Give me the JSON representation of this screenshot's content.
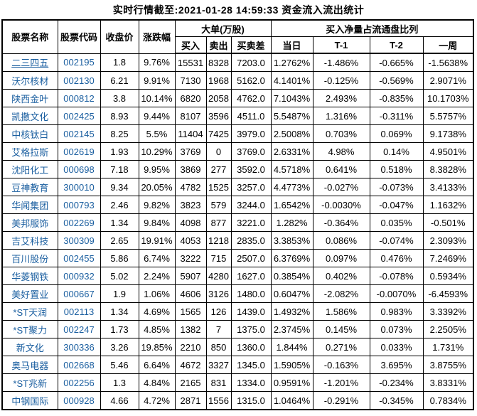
{
  "title": "实时行情截至:2021-01-28 14:59:33 资金流入流出统计",
  "colors": {
    "link_blue": "#1b5fa0",
    "border": "#000000",
    "background": "#ffffff",
    "text": "#000000"
  },
  "table": {
    "group_headers": {
      "big_orders": "大单(万股)",
      "net_buy_ratio": "买入净量占流通盘比列"
    },
    "column_headers": {
      "stock_name": "股票名称",
      "stock_code": "股票代码",
      "close_price": "收盘价",
      "change_pct": "涨跌幅",
      "buy": "买入",
      "sell": "卖出",
      "buy_sell_diff": "买卖差",
      "day": "当日",
      "t1": "T-1",
      "t2": "T-2",
      "week": "一周"
    },
    "underlined_row_index": 0,
    "rows": [
      [
        "二三四五",
        "002195",
        "1.8",
        "9.76%",
        "15531",
        "8328",
        "7203.0",
        "1.2762%",
        "-1.486%",
        "-0.665%",
        "-1.5638%"
      ],
      [
        "沃尔核材",
        "002130",
        "6.21",
        "9.91%",
        "7130",
        "1968",
        "5162.0",
        "4.1401%",
        "-0.125%",
        "-0.569%",
        "2.9071%"
      ],
      [
        "陕西金叶",
        "000812",
        "3.8",
        "10.14%",
        "6820",
        "2058",
        "4762.0",
        "7.1043%",
        "2.493%",
        "-0.835%",
        "10.1703%"
      ],
      [
        "凯撒文化",
        "002425",
        "8.93",
        "9.44%",
        "8107",
        "3596",
        "4511.0",
        "5.5487%",
        "1.316%",
        "-0.311%",
        "5.5757%"
      ],
      [
        "中核钛白",
        "002145",
        "8.25",
        "5.5%",
        "11404",
        "7425",
        "3979.0",
        "2.5008%",
        "0.703%",
        "0.069%",
        "9.1738%"
      ],
      [
        "艾格拉斯",
        "002619",
        "1.93",
        "10.29%",
        "3769",
        "0",
        "3769.0",
        "2.6331%",
        "4.98%",
        "0.14%",
        "4.9501%"
      ],
      [
        "沈阳化工",
        "000698",
        "7.18",
        "9.95%",
        "3869",
        "277",
        "3592.0",
        "4.5718%",
        "0.641%",
        "0.518%",
        "8.3828%"
      ],
      [
        "豆神教育",
        "300010",
        "9.34",
        "20.05%",
        "4782",
        "1525",
        "3257.0",
        "4.4773%",
        "-0.027%",
        "-0.073%",
        "3.4133%"
      ],
      [
        "华闻集团",
        "000793",
        "2.46",
        "9.82%",
        "3823",
        "579",
        "3244.0",
        "1.6542%",
        "-0.0030%",
        "-0.047%",
        "1.1632%"
      ],
      [
        "美邦服饰",
        "002269",
        "1.34",
        "9.84%",
        "4098",
        "877",
        "3221.0",
        "1.282%",
        "-0.364%",
        "0.035%",
        "-0.501%"
      ],
      [
        "吉艾科技",
        "300309",
        "2.65",
        "19.91%",
        "4053",
        "1218",
        "2835.0",
        "3.3853%",
        "0.086%",
        "-0.074%",
        "2.3093%"
      ],
      [
        "百川股份",
        "002455",
        "5.86",
        "6.74%",
        "3222",
        "715",
        "2507.0",
        "6.3769%",
        "0.097%",
        "0.476%",
        "7.2469%"
      ],
      [
        "华菱钢铁",
        "000932",
        "5.02",
        "2.24%",
        "5907",
        "4280",
        "1627.0",
        "0.3854%",
        "0.402%",
        "-0.078%",
        "0.5934%"
      ],
      [
        "美好置业",
        "000667",
        "1.9",
        "1.06%",
        "4606",
        "3126",
        "1480.0",
        "0.6047%",
        "-2.082%",
        "-0.0070%",
        "-6.4593%"
      ],
      [
        "*ST天润",
        "002113",
        "1.34",
        "4.69%",
        "1565",
        "126",
        "1439.0",
        "1.4932%",
        "1.586%",
        "0.983%",
        "3.3392%"
      ],
      [
        "*ST聚力",
        "002247",
        "1.73",
        "4.85%",
        "1382",
        "7",
        "1375.0",
        "2.3745%",
        "0.145%",
        "0.073%",
        "2.2505%"
      ],
      [
        "新文化",
        "300336",
        "3.26",
        "19.85%",
        "2210",
        "850",
        "1360.0",
        "1.844%",
        "0.271%",
        "0.033%",
        "1.731%"
      ],
      [
        "奥马电器",
        "002668",
        "5.46",
        "6.64%",
        "4672",
        "3327",
        "1345.0",
        "1.5905%",
        "-0.163%",
        "3.695%",
        "3.8755%"
      ],
      [
        "*ST兆新",
        "002256",
        "1.3",
        "4.84%",
        "2165",
        "831",
        "1334.0",
        "0.9591%",
        "-1.201%",
        "-0.234%",
        "3.8331%"
      ],
      [
        "中钢国际",
        "000928",
        "4.66",
        "4.72%",
        "2871",
        "1556",
        "1315.0",
        "1.0464%",
        "-0.291%",
        "-0.345%",
        "0.7834%"
      ]
    ]
  }
}
